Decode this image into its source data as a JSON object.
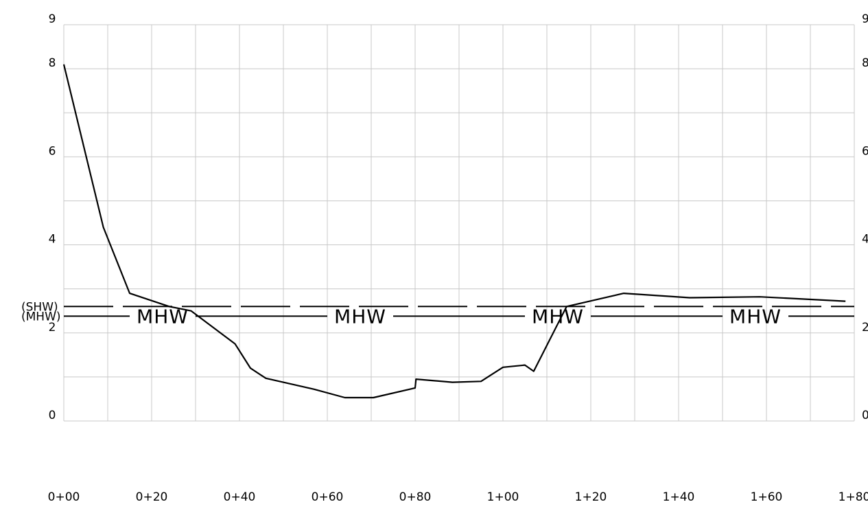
{
  "chart_data": {
    "type": "line",
    "title": "",
    "xlabel": "",
    "ylabel": "",
    "xlim": [
      0,
      180
    ],
    "ylim": [
      0,
      9
    ],
    "grid": true,
    "x_ticks": [
      {
        "value": 0,
        "label": "0+00"
      },
      {
        "value": 20,
        "label": "0+20"
      },
      {
        "value": 40,
        "label": "0+40"
      },
      {
        "value": 60,
        "label": "0+60"
      },
      {
        "value": 80,
        "label": "0+80"
      },
      {
        "value": 100,
        "label": "1+00"
      },
      {
        "value": 120,
        "label": "1+20"
      },
      {
        "value": 140,
        "label": "1+40"
      },
      {
        "value": 160,
        "label": "1+60"
      },
      {
        "value": 180,
        "label": "1+80"
      }
    ],
    "y_ticks_left": [
      {
        "value": 9,
        "label": "9"
      },
      {
        "value": 8,
        "label": "8"
      },
      {
        "value": 6,
        "label": "6"
      },
      {
        "value": 4,
        "label": "4"
      },
      {
        "value": 2,
        "label": "2"
      },
      {
        "value": 0,
        "label": "0"
      }
    ],
    "y_ticks_right": [
      {
        "value": 9,
        "label": "9"
      },
      {
        "value": 8,
        "label": "8"
      },
      {
        "value": 6,
        "label": "6"
      },
      {
        "value": 4,
        "label": "4"
      },
      {
        "value": 2,
        "label": "2"
      },
      {
        "value": 0,
        "label": "0"
      }
    ],
    "series": [
      {
        "x": [
          0,
          9,
          15,
          24,
          29,
          39,
          42.5,
          46,
          57,
          64,
          70.5,
          80,
          80.2,
          88.5,
          95,
          100,
          105,
          107,
          114.5,
          127.5,
          142.5,
          158.5,
          178
        ],
        "y": [
          8.1,
          4.4,
          2.9,
          2.6,
          2.5,
          1.75,
          1.2,
          0.97,
          0.72,
          0.53,
          0.53,
          0.75,
          0.95,
          0.88,
          0.9,
          1.22,
          1.27,
          1.13,
          2.6,
          2.9,
          2.8,
          2.82,
          2.72
        ]
      }
    ],
    "reference_lines": [
      {
        "id": "shw",
        "label": "(SHW)",
        "y": 2.6,
        "style": "dashed"
      },
      {
        "id": "mhw",
        "label": "(MHW)",
        "y": 2.38,
        "style": "solid",
        "inline_labels": [
          "MHW",
          "MHW",
          "MHW",
          "MHW"
        ],
        "inline_label_x": [
          22.5,
          67.5,
          112.5,
          157.5
        ]
      }
    ]
  }
}
